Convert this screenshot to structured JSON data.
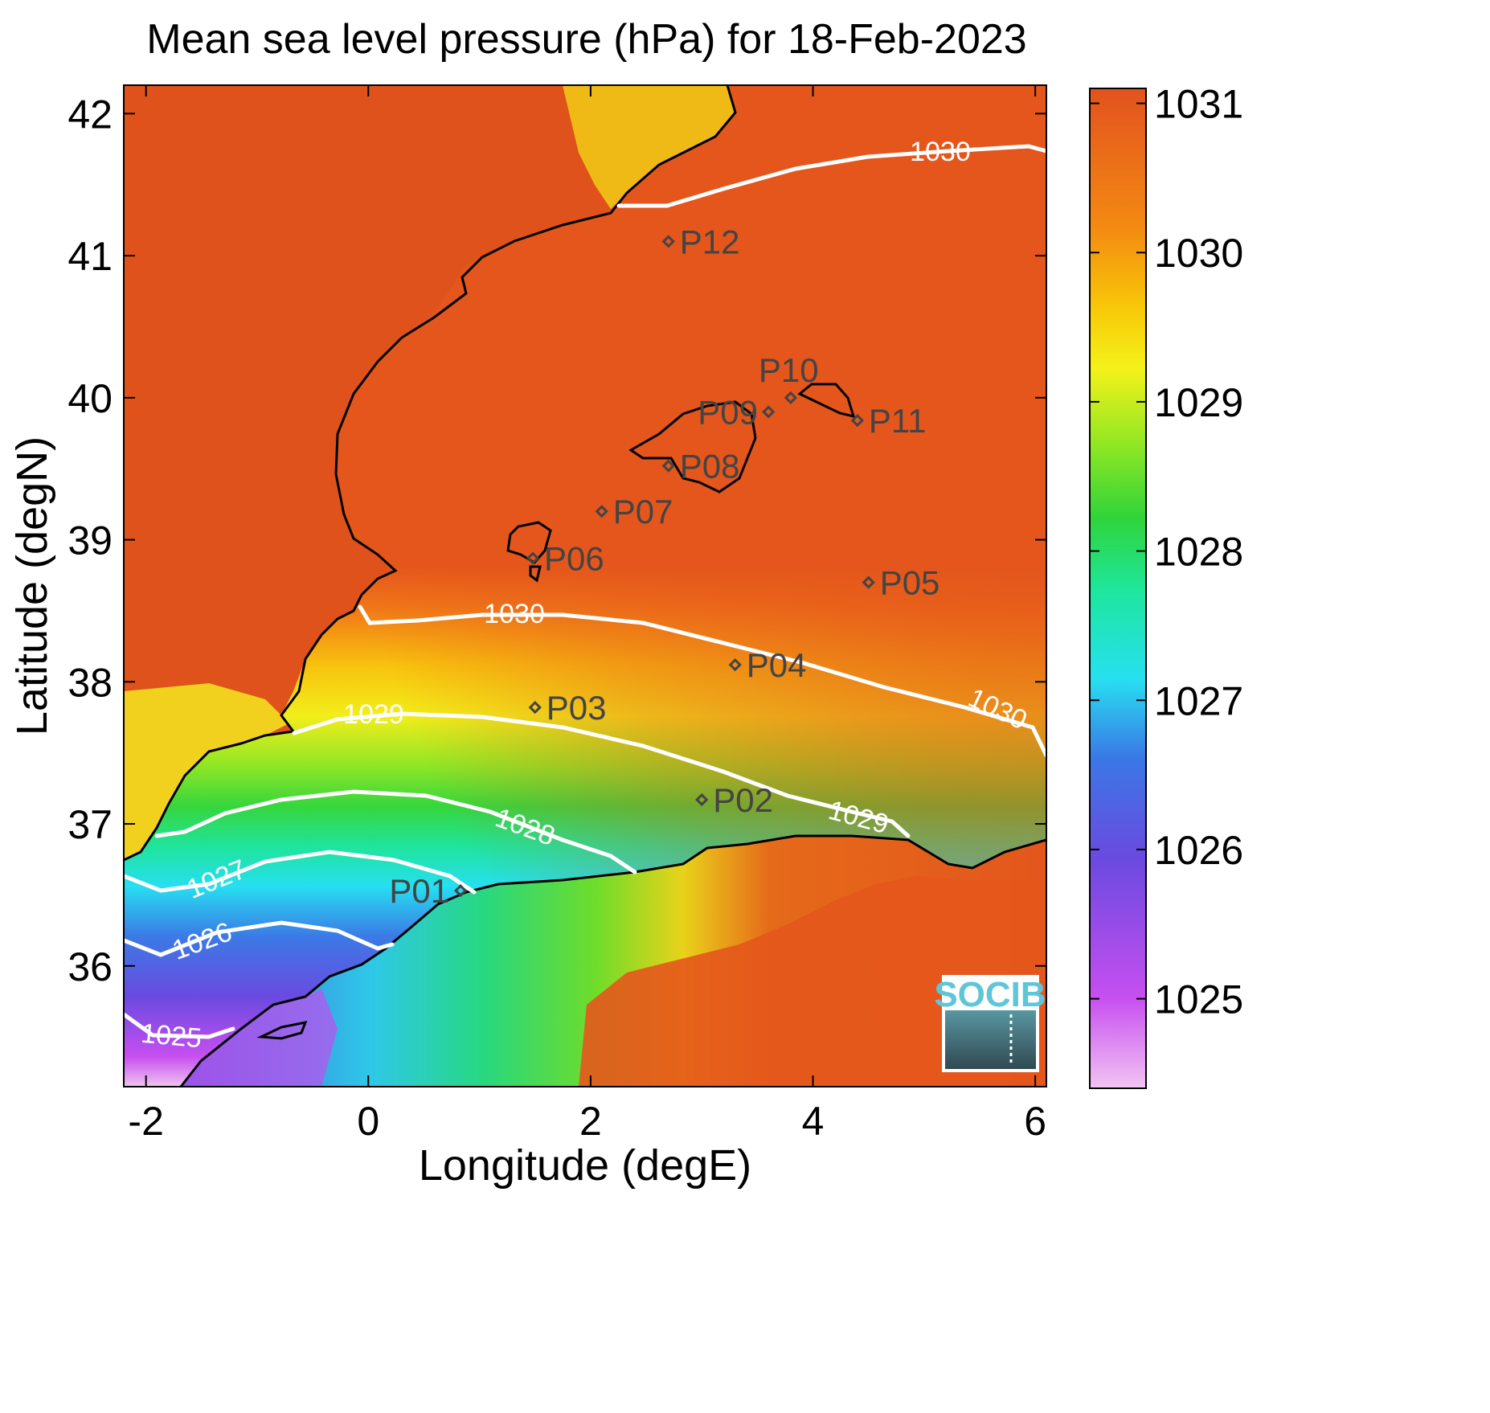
{
  "title": "Mean sea level pressure (hPa) for 18-Feb-2023",
  "x_axis": {
    "label": "Longitude (degE)",
    "range": [
      -2.2,
      6.1
    ],
    "ticks": [
      -2,
      0,
      2,
      4,
      6
    ],
    "tick_labels": [
      "-2",
      "0",
      "2",
      "4",
      "6"
    ]
  },
  "y_axis": {
    "label": "Latitude (degN)",
    "range": [
      35.15,
      42.2
    ],
    "ticks": [
      36,
      37,
      38,
      39,
      40,
      41,
      42
    ],
    "tick_labels": [
      "36",
      "37",
      "38",
      "39",
      "40",
      "41",
      "42"
    ]
  },
  "colorbar": {
    "range": [
      1024.4,
      1031.1
    ],
    "ticks": [
      1025,
      1026,
      1027,
      1028,
      1029,
      1030,
      1031
    ],
    "tick_labels": [
      "1025",
      "1026",
      "1027",
      "1028",
      "1029",
      "1030",
      "1031"
    ],
    "colormap": [
      "#f2c4f2",
      "#c74ff0",
      "#6a4ae0",
      "#3a78e6",
      "#27e0f0",
      "#1ee69a",
      "#2fd43a",
      "#8be624",
      "#f4f21a",
      "#f8c808",
      "#f48a12",
      "#e2521e"
    ]
  },
  "contours": [
    {
      "value": 1030,
      "label": "1030"
    },
    {
      "value": 1029,
      "label": "1029"
    },
    {
      "value": 1028,
      "label": "1028"
    },
    {
      "value": 1027,
      "label": "1027"
    },
    {
      "value": 1026,
      "label": "1026"
    },
    {
      "value": 1025,
      "label": "1025"
    }
  ],
  "stations": [
    {
      "name": "P01",
      "lon": 0.83,
      "lat": 36.53
    },
    {
      "name": "P02",
      "lon": 3.0,
      "lat": 37.17
    },
    {
      "name": "P03",
      "lon": 1.5,
      "lat": 37.82
    },
    {
      "name": "P04",
      "lon": 3.3,
      "lat": 38.12
    },
    {
      "name": "P05",
      "lon": 4.5,
      "lat": 38.7
    },
    {
      "name": "P06",
      "lon": 1.48,
      "lat": 38.87
    },
    {
      "name": "P07",
      "lon": 2.1,
      "lat": 39.2
    },
    {
      "name": "P08",
      "lon": 2.7,
      "lat": 39.52
    },
    {
      "name": "P09",
      "lon": 3.6,
      "lat": 39.9
    },
    {
      "name": "P10",
      "lon": 3.8,
      "lat": 40.0
    },
    {
      "name": "P11",
      "lon": 4.4,
      "lat": 39.84
    },
    {
      "name": "P12",
      "lon": 2.7,
      "lat": 41.1
    }
  ],
  "logo": {
    "text": "SOCIB"
  },
  "colors": {
    "contour": "#ffffff",
    "coast": "#000000",
    "marker": "#444444",
    "logo_border": "#ffffff",
    "logo_text": "#5fc6d8"
  }
}
